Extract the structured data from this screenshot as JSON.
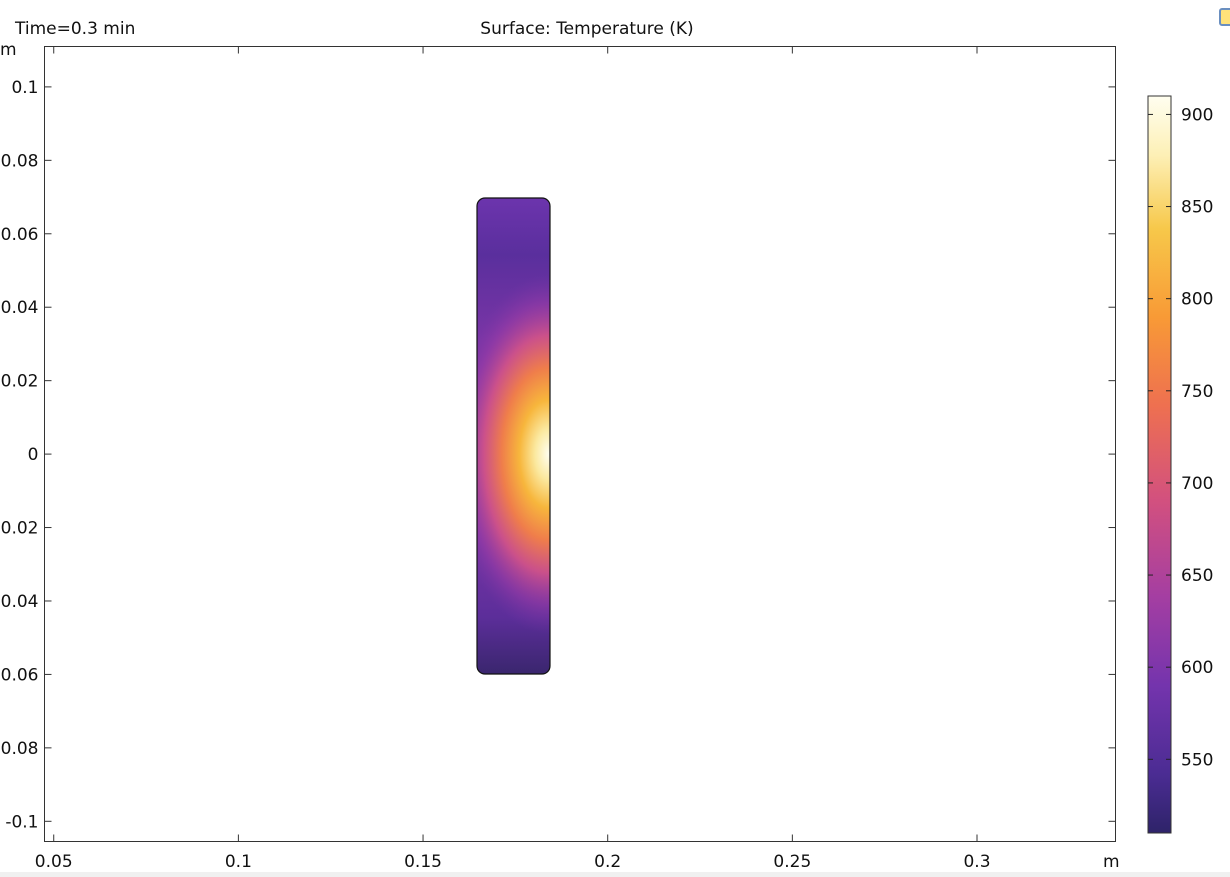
{
  "plot": {
    "time_label": "Time=0.3 min",
    "title": "Surface: Temperature (K)",
    "x_unit": "m",
    "y_unit": "m"
  },
  "chart_data": {
    "type": "heatmap",
    "title": "Surface: Temperature (K)",
    "subtitle": "Time=0.3 min",
    "xlabel": "m",
    "ylabel": "m",
    "xlim": [
      0.0475,
      0.3375
    ],
    "ylim": [
      -0.1055,
      0.111
    ],
    "x_ticks": [
      "0.05",
      "0.1",
      "0.15",
      "0.2",
      "0.25",
      "0.3"
    ],
    "y_ticks": [
      "0.1",
      "0.08",
      "0.06",
      "0.04",
      "0.02",
      "0",
      "-0.02",
      "-0.04",
      "-0.06",
      "-0.08",
      "-0.1"
    ],
    "domain": {
      "x": [
        0.16,
        0.18
      ],
      "y": [
        -0.06,
        0.07
      ]
    },
    "colorbar": {
      "quantity": "Temperature (K)",
      "min": 510,
      "max": 910,
      "ticks": [
        "900",
        "850",
        "800",
        "750",
        "700",
        "650",
        "600",
        "550"
      ],
      "colormap": [
        "#2d2468",
        "#5b2f9e",
        "#8a3aa8",
        "#c04a95",
        "#e96a5a",
        "#f8973a",
        "#f6c94a",
        "#fdf3c0",
        "#fffef0"
      ]
    },
    "grid": false
  },
  "ui": {
    "icon": "window-restore-icon"
  }
}
